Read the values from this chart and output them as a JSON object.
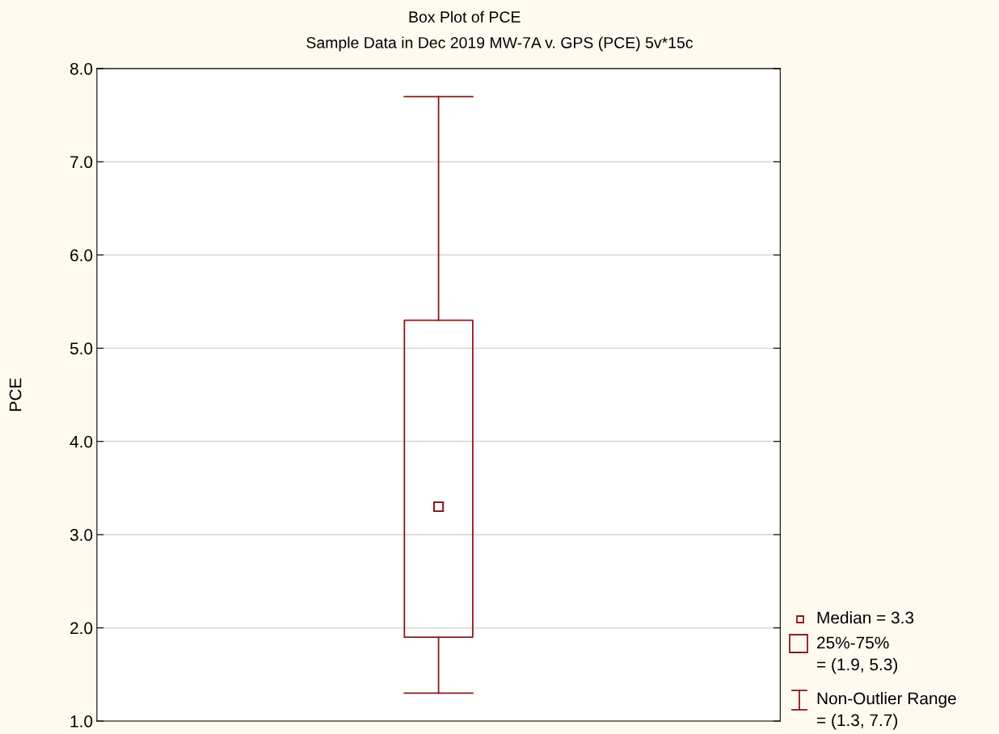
{
  "chart_data": {
    "type": "box",
    "title": "Box Plot of PCE",
    "subtitle": "Sample Data in Dec 2019 MW-7A v. GPS (PCE) 5v*15c",
    "ylabel": "PCE",
    "categories": [
      null
    ],
    "series": [
      {
        "color": "#8b1a1a",
        "boxes": [
          {
            "low": 1.3,
            "q1": 1.9,
            "median": 3.3,
            "q3": 5.3,
            "high": 7.7
          }
        ]
      }
    ],
    "ylim": [
      1.0,
      8.0
    ],
    "yticks": [
      {
        "value": 1,
        "label": "1.0"
      },
      {
        "value": 2,
        "label": "2.0"
      },
      {
        "value": 3,
        "label": "3.0"
      },
      {
        "value": 4,
        "label": "4.0"
      },
      {
        "value": 5,
        "label": "5.0"
      },
      {
        "value": 6,
        "label": "6.0"
      },
      {
        "value": 7,
        "label": "7.0"
      },
      {
        "value": 8,
        "label": "8.0"
      }
    ],
    "grid": "y",
    "annotations": [
      "Median = 3.3",
      "25%-75%\n= (1.9, 5.3)",
      "Non-Outlier Range\n= (1.3, 7.7)"
    ]
  }
}
